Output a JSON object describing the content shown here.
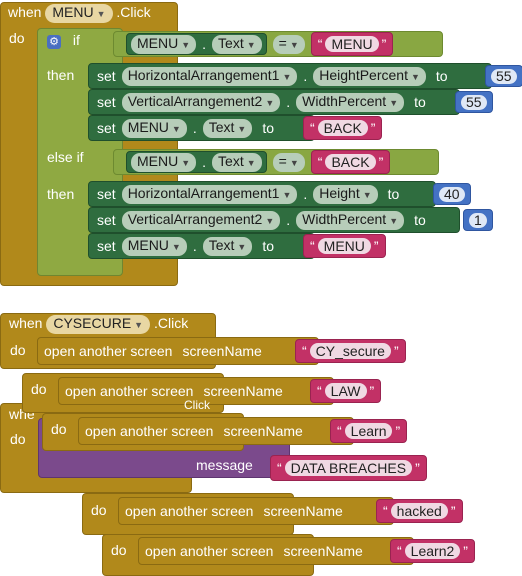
{
  "menu_event": {
    "when": "when",
    "component": "MENU",
    "event": ".Click",
    "do": "do",
    "if_kw": "if",
    "then_kw": "then",
    "elseif_kw": "else if",
    "set_kw": "set",
    "to_kw": "to",
    "dot": ".",
    "eq": "=",
    "cond1": {
      "component": "MENU",
      "prop": "Text",
      "value": "MENU"
    },
    "then1": [
      {
        "component": "HorizontalArrangement1",
        "prop": "HeightPercent",
        "value": "55"
      },
      {
        "component": "VerticalArrangement2",
        "prop": "WidthPercent",
        "value": "55"
      },
      {
        "component": "MENU",
        "prop": "Text",
        "value": "BACK"
      }
    ],
    "cond2": {
      "component": "MENU",
      "prop": "Text",
      "value": "BACK"
    },
    "then2": [
      {
        "component": "HorizontalArrangement1",
        "prop": "Height",
        "value": "40"
      },
      {
        "component": "VerticalArrangement2",
        "prop": "WidthPercent",
        "value": "1"
      },
      {
        "component": "MENU",
        "prop": "Text",
        "value": "MENU"
      }
    ]
  },
  "cysecure_event": {
    "when": "when",
    "component": "CYSECURE",
    "event": ".Click",
    "do": "do",
    "open": "open another screen",
    "screen_name": "screenName",
    "value": "CY_secure"
  },
  "stack": {
    "do": "do",
    "open": "open another screen",
    "screen_name": "screenName",
    "law": "LAW",
    "learn": "Learn",
    "message": "message",
    "data_breaches": "DATA BREACHES",
    "hacked": "hacked",
    "learn2": "Learn2",
    "partial_when": "whe",
    "partial_click": "Click",
    "partial_ick": "ck"
  },
  "colors": {
    "event": "#b1891b",
    "control": "#8fa942",
    "setter": "#2f6d3f",
    "text": "#c23166",
    "number": "#4472c4",
    "notifier": "#7b4a8c"
  }
}
